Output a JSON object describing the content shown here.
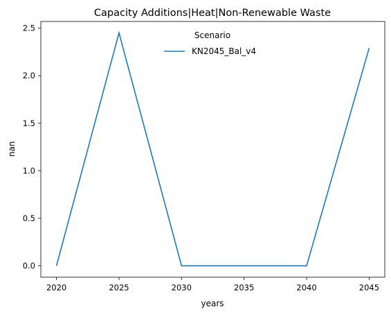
{
  "chart_data": {
    "type": "line",
    "title": "Capacity Additions|Heat|Non-Renewable Waste",
    "xlabel": "years",
    "ylabel": "nan",
    "x": [
      2020,
      2025,
      2030,
      2035,
      2040,
      2045
    ],
    "xticks": [
      "2020",
      "2025",
      "2030",
      "2035",
      "2040",
      "2045"
    ],
    "yticks": [
      "0.0",
      "0.5",
      "1.0",
      "1.5",
      "2.0",
      "2.5"
    ],
    "xlim": [
      2018.75,
      2046.25
    ],
    "ylim": [
      -0.12,
      2.57
    ],
    "grid": false,
    "legend": {
      "title": "Scenario",
      "placement": "top-center"
    },
    "series": [
      {
        "name": "KN2045_Bal_v4",
        "color": "#1f77b4",
        "points": [
          {
            "x": 2020,
            "y": 0.0
          },
          {
            "x": 2025,
            "y": 2.45
          },
          {
            "x": 2030,
            "y": 0.0
          },
          {
            "x": 2040,
            "y": 0.0
          },
          {
            "x": 2045,
            "y": 2.29
          }
        ]
      }
    ]
  }
}
